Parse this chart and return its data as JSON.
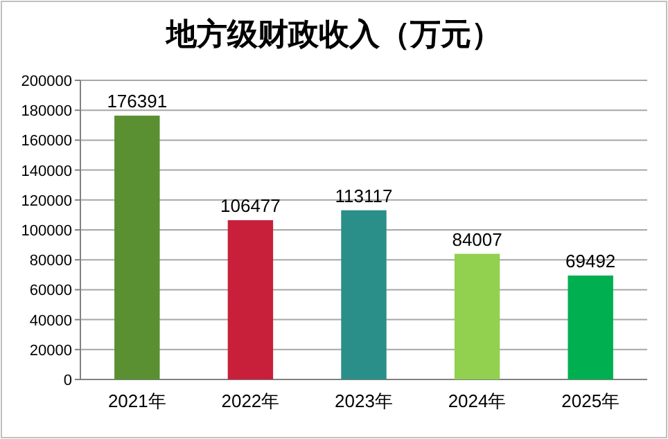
{
  "chart_data": {
    "type": "bar",
    "title": "地方级财政收入（万元）",
    "categories": [
      "2021年",
      "2022年",
      "2023年",
      "2024年",
      "2025年"
    ],
    "values": [
      176391,
      106477,
      113117,
      84007,
      69492
    ],
    "colors": [
      "#5a8f32",
      "#c8203a",
      "#2a8f88",
      "#92d050",
      "#00b050"
    ],
    "ylim": [
      0,
      200000
    ],
    "yticks": [
      0,
      20000,
      40000,
      60000,
      80000,
      100000,
      120000,
      140000,
      160000,
      180000,
      200000
    ],
    "grid": "y",
    "data_labels": true
  }
}
